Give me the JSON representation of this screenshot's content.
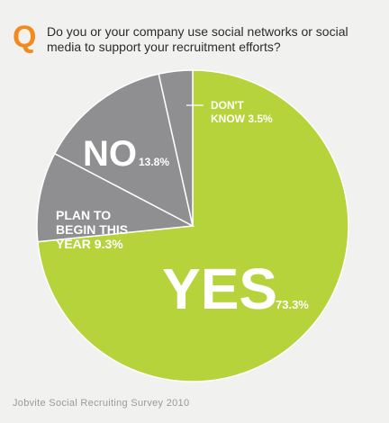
{
  "header": {
    "q_letter": "Q",
    "question": "Do you or your company use social networks or social media to support your recruitment efforts?"
  },
  "chart_data": {
    "type": "pie",
    "title": "",
    "slices": [
      {
        "big": "YES",
        "label": "",
        "value_label": "73.3%",
        "value": 73.3,
        "color": "#b7d33b"
      },
      {
        "big": "",
        "label": "PLAN TO BEGIN THIS YEAR",
        "value_label": "9.3%",
        "value": 9.3,
        "color": "#8f8f92"
      },
      {
        "big": "NO",
        "label": "",
        "value_label": "13.8%",
        "value": 13.8,
        "color": "#8f8f92"
      },
      {
        "big": "",
        "label": "DON'T KNOW",
        "value_label": "3.5%",
        "value": 3.5,
        "color": "#8f8f92"
      }
    ],
    "start_angle_deg": 0,
    "direction": "clockwise"
  },
  "footer": {
    "source": "Jobvite Social Recruiting Survey 2010"
  }
}
